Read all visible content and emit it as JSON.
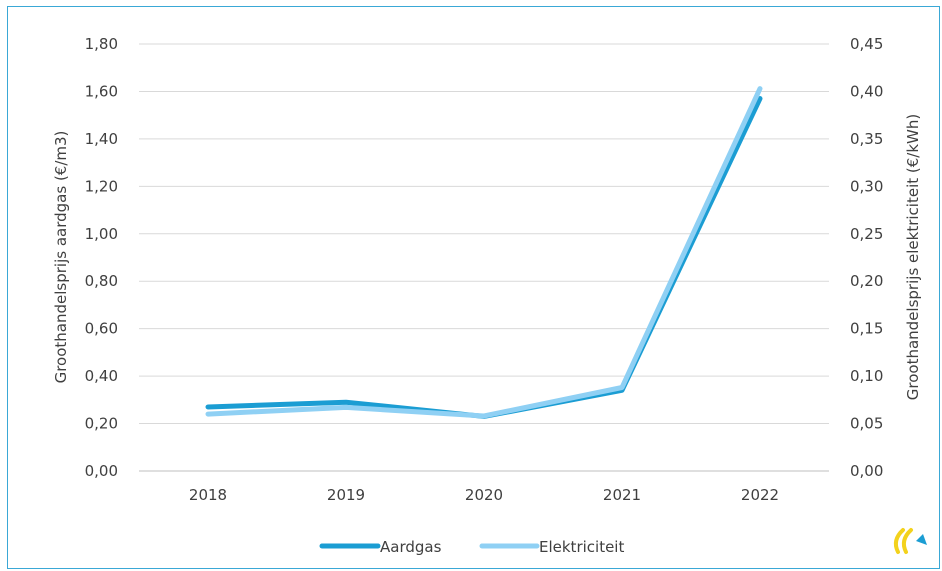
{
  "chart_data": {
    "type": "line",
    "categories": [
      "2018",
      "2019",
      "2020",
      "2021",
      "2022"
    ],
    "ylabel": "Groothandelsprijs aardgas (€/m3)",
    "ylabel_right": "Groothandelsprijs elektriciteit (€/kWh)",
    "ylim": [
      0,
      1.8
    ],
    "ylim_right": [
      0,
      0.45
    ],
    "yticks": [
      "0,00",
      "0,20",
      "0,40",
      "0,60",
      "0,80",
      "1,00",
      "1,20",
      "1,40",
      "1,60",
      "1,80"
    ],
    "yticks_right": [
      "0,00",
      "0,05",
      "0,10",
      "0,15",
      "0,20",
      "0,25",
      "0,30",
      "0,35",
      "0,40",
      "0,45"
    ],
    "grid": true,
    "legend_position": "bottom",
    "series": [
      {
        "name": "Aardgas",
        "axis": "left",
        "color": "#1b9dd3",
        "values": [
          0.27,
          0.29,
          0.23,
          0.34,
          1.57
        ]
      },
      {
        "name": "Elektriciteit",
        "axis": "right",
        "color": "#8fd0f4",
        "values": [
          0.06,
          0.067,
          0.058,
          0.088,
          0.403
        ]
      }
    ]
  },
  "logo": {
    "icon": "brand-logo-icon"
  }
}
